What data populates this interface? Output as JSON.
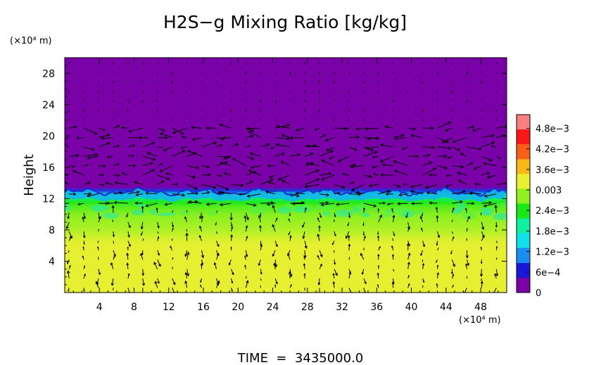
{
  "chart_data": {
    "type": "heatmap",
    "title": "H2S−g Mixing Ratio [kg/kg]",
    "ylabel": "Height",
    "x_unit": "(×10⁴ m)",
    "y_unit": "(×10⁴ m)",
    "footer": "TIME  =  3435000.0",
    "xlim": [
      0,
      51
    ],
    "ylim": [
      0,
      30
    ],
    "x_ticks": [
      4,
      8,
      12,
      16,
      20,
      24,
      28,
      32,
      36,
      40,
      44,
      48
    ],
    "x_tick_labels": [
      "4",
      "8",
      "12",
      "16",
      "20",
      "24",
      "28",
      "32",
      "36",
      "40",
      "44",
      "48"
    ],
    "y_ticks": [
      4,
      8,
      12,
      16,
      20,
      24,
      28
    ],
    "y_tick_labels": [
      "4",
      "8",
      "12",
      "16",
      "20",
      "24",
      "28"
    ],
    "colorbar": {
      "range": [
        0,
        0.0052
      ],
      "ticks": [
        0,
        0.0006,
        0.0012,
        0.0018,
        0.0024,
        0.003,
        0.0036,
        0.0042,
        0.0048
      ],
      "tick_labels": [
        "0",
        "6e−4",
        "1.2e−3",
        "1.8e−3",
        "2.4e−3",
        "0.003",
        "3.6e−3",
        "4.2e−3",
        "4.8e−3"
      ],
      "colors": [
        "#7a00a8",
        "#1a18d8",
        "#1a8ef0",
        "#10e0e8",
        "#10f0a0",
        "#18e818",
        "#90f020",
        "#e8f030",
        "#f8b818",
        "#f86018",
        "#f81818",
        "#f88080"
      ]
    },
    "field_profile": {
      "height": [
        0,
        2,
        4,
        6,
        7,
        8,
        9,
        10,
        10.5,
        11,
        11.5,
        12,
        12.5,
        13,
        13.5,
        30
      ],
      "value": [
        0.0033,
        0.0033,
        0.0033,
        0.0033,
        0.0032,
        0.003,
        0.0029,
        0.0028,
        0.0027,
        0.0026,
        0.0024,
        0.0021,
        0.0015,
        0.0006,
        0.0,
        0.0
      ]
    },
    "interface_height": 12.5,
    "vectors": {
      "description": "wind vectors, arrows",
      "x_spacing": 1.7,
      "y_spacing": 1.2
    }
  }
}
